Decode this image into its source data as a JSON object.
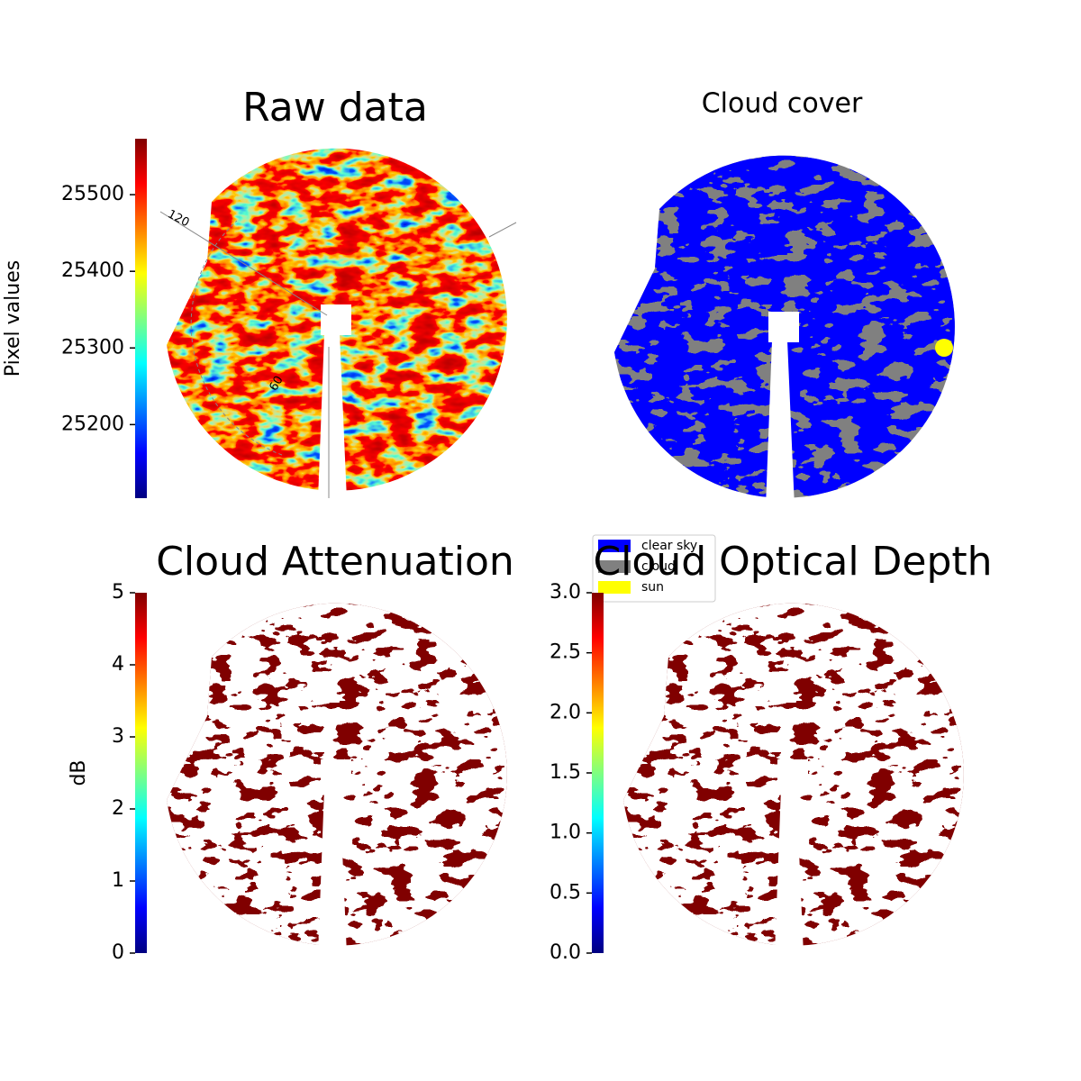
{
  "chart_data": [
    {
      "type": "image",
      "title": "Raw data",
      "colormap": "jet",
      "ylabel": "Pixel values",
      "ylim": [
        25104,
        25573
      ],
      "yticks": [
        25200,
        25300,
        25400,
        25500
      ],
      "annotations": [
        "120",
        "60"
      ]
    },
    {
      "type": "image",
      "title": "Cloud cover",
      "legend": [
        {
          "name": "clear sky",
          "color": "#0000ff"
        },
        {
          "name": "cloud",
          "color": "#808080"
        },
        {
          "name": "sun",
          "color": "#ffff00"
        }
      ]
    },
    {
      "type": "image",
      "title": "Cloud Attenuation",
      "colormap": "jet",
      "ylabel": "dB",
      "ylim": [
        0,
        5
      ],
      "yticks": [
        0,
        1,
        2,
        3,
        4,
        5
      ]
    },
    {
      "type": "image",
      "title": "Cloud Optical Depth",
      "colormap": "jet",
      "ylim": [
        0,
        3
      ],
      "yticks": [
        {
          "value": 0,
          "label": "0.0"
        },
        0.5,
        {
          "value": 1,
          "label": "1.0"
        },
        1.5,
        {
          "value": 2,
          "label": "2.0"
        },
        2.5,
        {
          "value": 3,
          "label": "3.0"
        }
      ]
    }
  ]
}
